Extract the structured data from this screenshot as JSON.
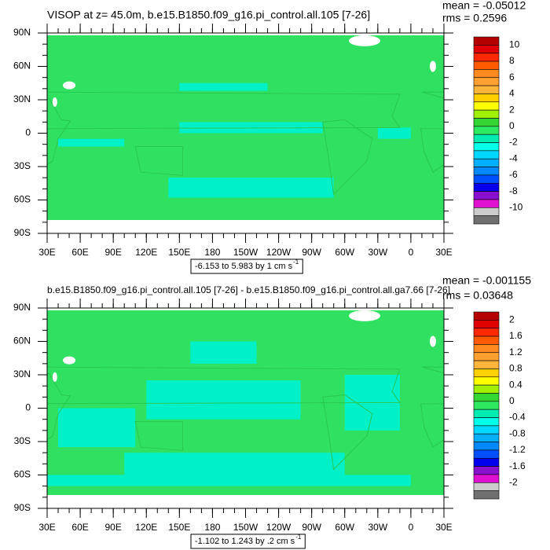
{
  "panels": [
    {
      "title": "VISOP at z=  45.0m, b.e15.B1850.f09_g16.pi_control.all.105 [7-26]",
      "mean": "mean = -0.05012",
      "rms": "rms = 0.2596",
      "info": "-6.153 to 5.983 by 1 cm s",
      "info_sup": "-1",
      "colorbar_labels": [
        "10",
        "8",
        "6",
        "4",
        "2",
        "0",
        "-2",
        "-4",
        "-6",
        "-8",
        "-10"
      ]
    },
    {
      "title": "b.e15.B1850.f09_g16.pi_control.all.105 [7-26] - b.e15.B1850.f09_g16.pi_control.all.ga7.66 [7-26]",
      "mean": "mean = -0.001155",
      "rms": "rms = 0.03648",
      "info": "-1.102 to 1.243 by .2 cm s",
      "info_sup": "-1",
      "colorbar_labels": [
        "2",
        "1.6",
        "1.2",
        "0.8",
        "0.4",
        "0",
        "-0.4",
        "-0.8",
        "-1.2",
        "-1.6",
        "-2"
      ]
    }
  ],
  "lat_labels": [
    "90N",
    "60N",
    "30N",
    "0",
    "30S",
    "60S",
    "90S"
  ],
  "lon_labels": [
    "30E",
    "60E",
    "90E",
    "120E",
    "150E",
    "180",
    "150W",
    "120W",
    "90W",
    "60W",
    "30W",
    "0",
    "30E"
  ],
  "colorbar_colors": [
    "#b40000",
    "#e00000",
    "#ff2800",
    "#ff5a00",
    "#ff8a20",
    "#ffa030",
    "#ffb43c",
    "#ffd000",
    "#ffff00",
    "#a0f000",
    "#33d633",
    "#2ee860",
    "#00ecb0",
    "#00ffe8",
    "#00d8ff",
    "#00b0ff",
    "#0088ff",
    "#0050ff",
    "#0000ee",
    "#8a10d0",
    "#e010d0",
    "#cccccc",
    "#707070"
  ]
}
